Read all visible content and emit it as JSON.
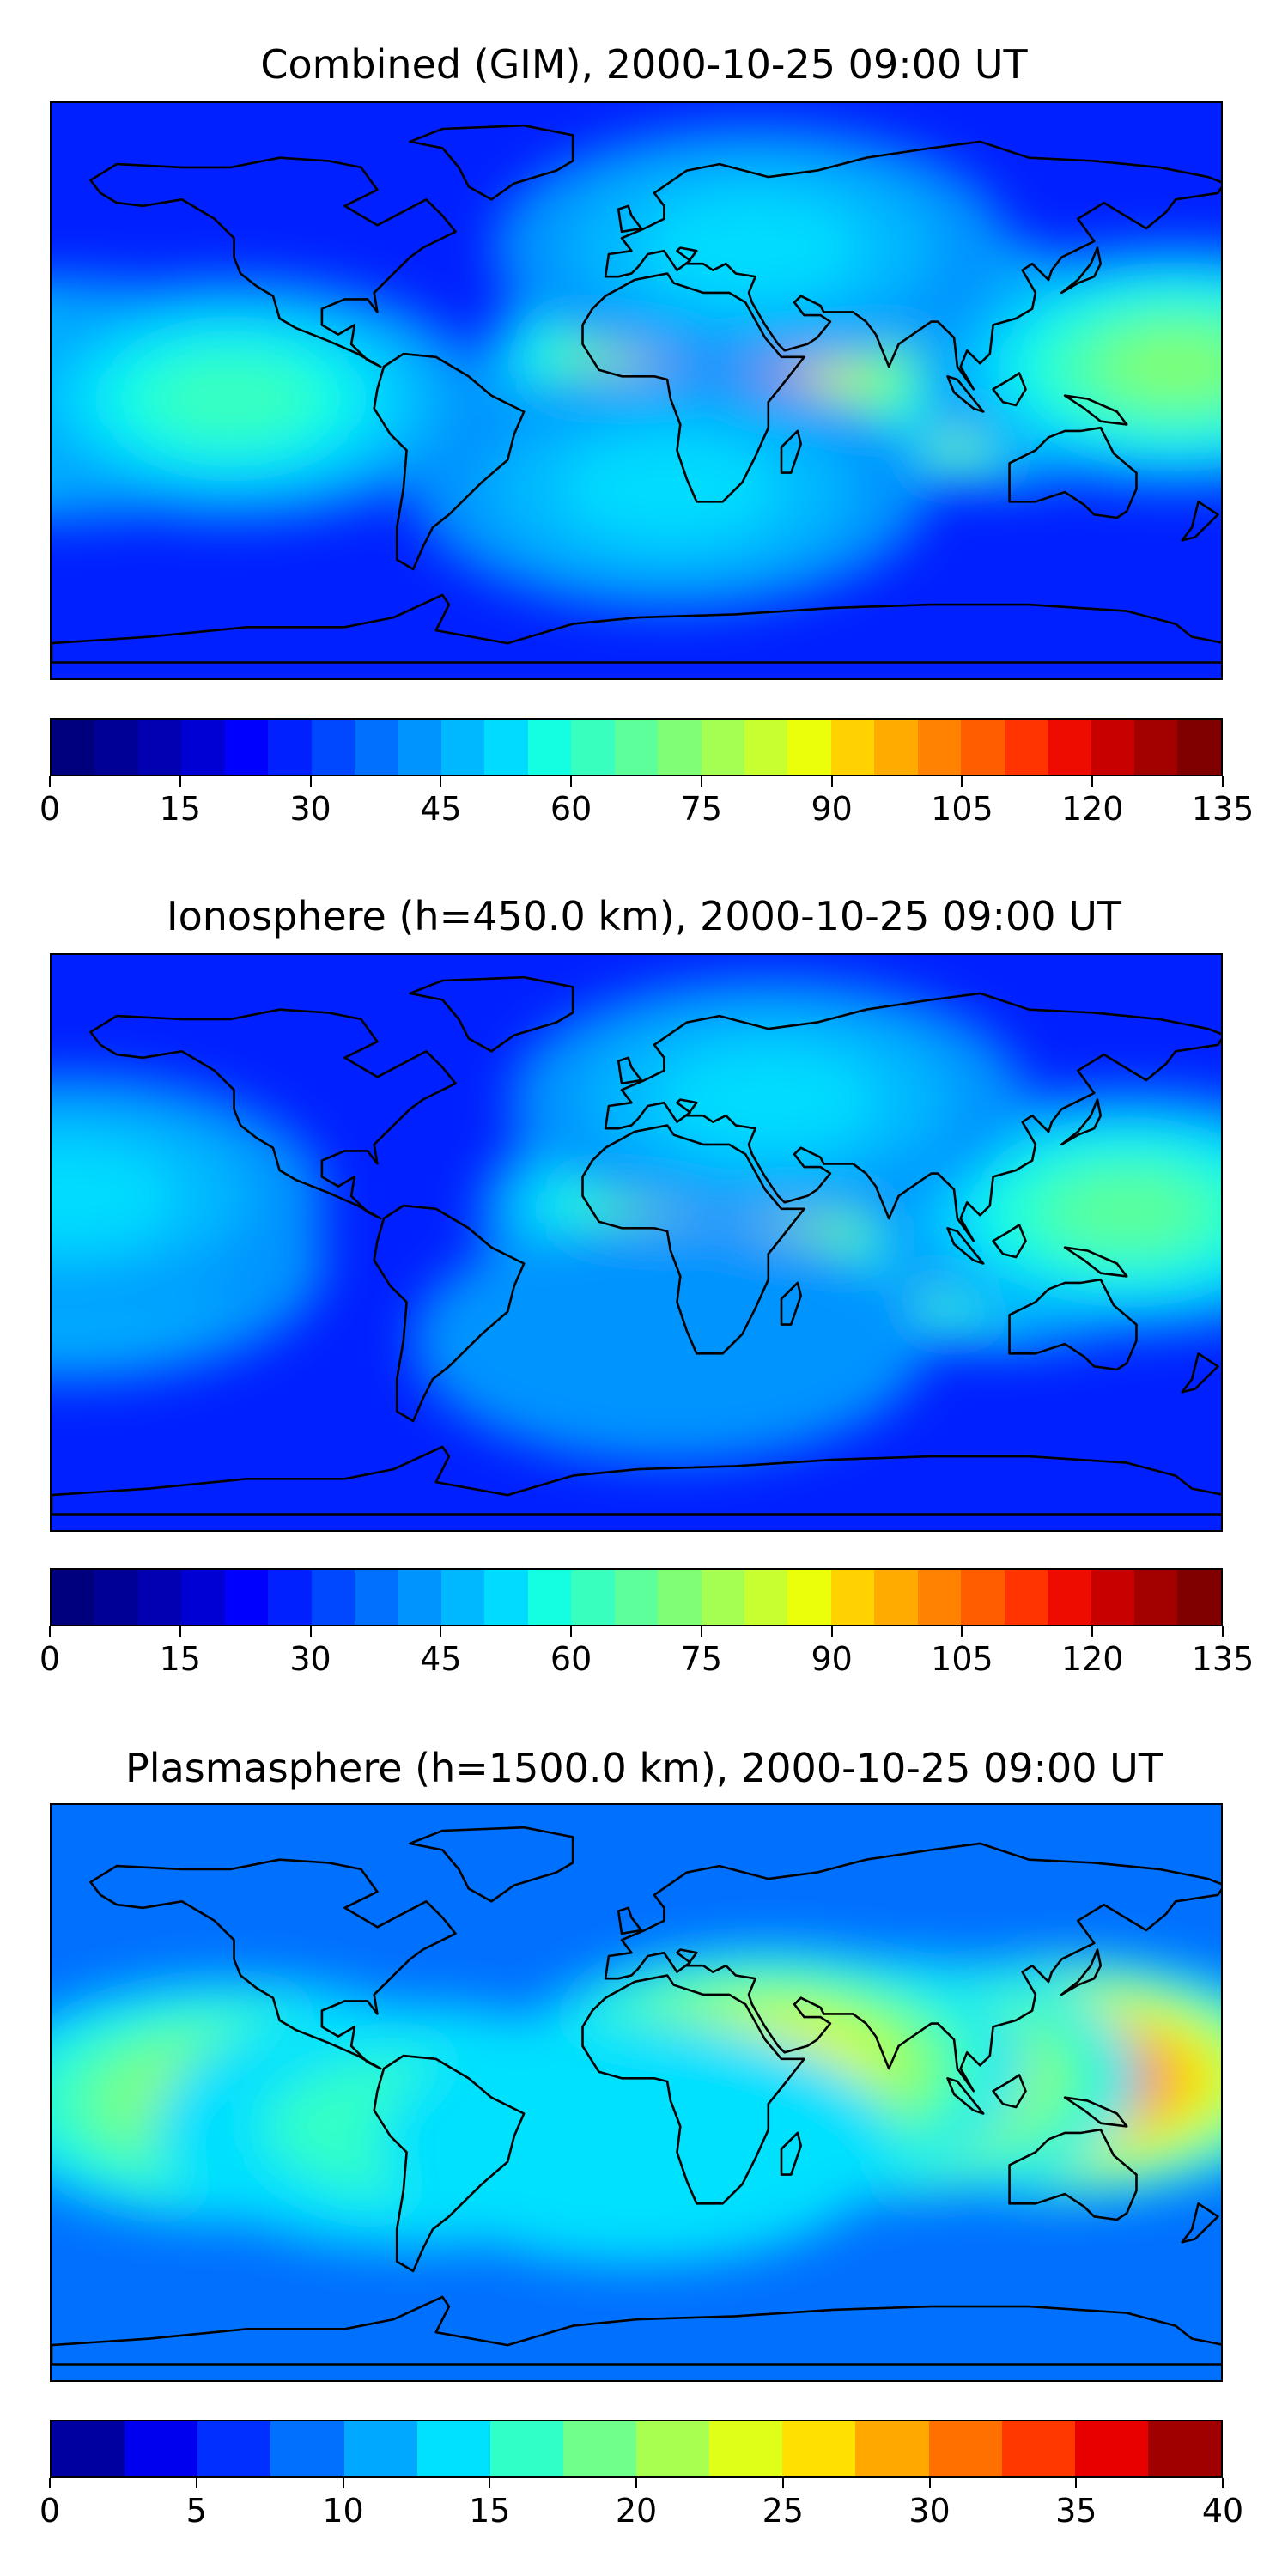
{
  "panels": [
    {
      "title": "Combined (GIM), 2000-10-25 09:00 UT",
      "colorbar": {
        "colors": [
          "#00007f",
          "#000096",
          "#0000b2",
          "#0000d5",
          "#0000ff",
          "#0020ff",
          "#0048ff",
          "#0070ff",
          "#0094ff",
          "#00b8ff",
          "#00dcff",
          "#14ffe2",
          "#38ffbe",
          "#5cff9a",
          "#80ff76",
          "#a4ff52",
          "#c8ff2e",
          "#ecff0a",
          "#ffd200",
          "#ffab00",
          "#ff8200",
          "#ff5d00",
          "#ff3400",
          "#ee0c00",
          "#c80000",
          "#a30000",
          "#800000"
        ],
        "ticks": [
          "0",
          "15",
          "30",
          "45",
          "60",
          "75",
          "90",
          "105",
          "120",
          "135"
        ]
      },
      "hotspots": [
        {
          "lon": 72,
          "lat": 10,
          "level": 1.0
        },
        {
          "lon": 105,
          "lat": 8,
          "level": 0.9
        },
        {
          "lon": 30,
          "lat": 8,
          "level": 0.75
        },
        {
          "lon": 165,
          "lat": 8,
          "level": 0.55
        },
        {
          "lon": -175,
          "lat": -2,
          "level": 0.55
        },
        {
          "lon": -125,
          "lat": -2,
          "level": 0.45
        },
        {
          "lon": 35,
          "lat": 45,
          "level": 0.4
        },
        {
          "lon": 10,
          "lat": -30,
          "level": 0.38
        }
      ]
    },
    {
      "title": "Ionosphere  (h=450.0 km), 2000-10-25 09:00 UT",
      "colorbar": {
        "colors": [
          "#00007f",
          "#000096",
          "#0000b2",
          "#0000d5",
          "#0000ff",
          "#0020ff",
          "#0048ff",
          "#0070ff",
          "#0094ff",
          "#00b8ff",
          "#00dcff",
          "#14ffe2",
          "#38ffbe",
          "#5cff9a",
          "#80ff76",
          "#a4ff52",
          "#c8ff2e",
          "#ecff0a",
          "#ffd200",
          "#ffab00",
          "#ff8200",
          "#ff5d00",
          "#ff3400",
          "#ee0c00",
          "#c80000",
          "#a30000",
          "#800000"
        ],
        "ticks": [
          "0",
          "15",
          "30",
          "45",
          "60",
          "75",
          "90",
          "105",
          "120",
          "135"
        ]
      },
      "hotspots": [
        {
          "lon": 75,
          "lat": 10,
          "level": 0.8
        },
        {
          "lon": 110,
          "lat": 5,
          "level": 0.78
        },
        {
          "lon": 30,
          "lat": 10,
          "level": 0.6
        },
        {
          "lon": 150,
          "lat": 10,
          "level": 0.5
        },
        {
          "lon": -175,
          "lat": -5,
          "level": 0.4
        },
        {
          "lon": -175,
          "lat": 15,
          "level": 0.4
        },
        {
          "lon": 40,
          "lat": 45,
          "level": 0.38
        },
        {
          "lon": 10,
          "lat": -30,
          "level": 0.32
        }
      ]
    },
    {
      "title": "Plasmasphere (h=1500.0 km), 2000-10-25 09:00 UT",
      "colorbar": {
        "colors": [
          "#0000a0",
          "#0000ef",
          "#0030ff",
          "#0070ff",
          "#00a8ff",
          "#00e0ff",
          "#30ffc8",
          "#70ff8a",
          "#a8ff50",
          "#e0ff18",
          "#ffe000",
          "#ffa800",
          "#ff7000",
          "#ff3800",
          "#e80000",
          "#a00000"
        ],
        "ticks": [
          "0",
          "5",
          "10",
          "15",
          "20",
          "25",
          "30",
          "35",
          "40"
        ]
      },
      "hotspots": [
        {
          "lon": 130,
          "lat": 5,
          "level": 0.9
        },
        {
          "lon": 75,
          "lat": 5,
          "level": 0.75
        },
        {
          "lon": 40,
          "lat": 8,
          "level": 0.65
        },
        {
          "lon": -125,
          "lat": -2,
          "level": 0.55
        },
        {
          "lon": -70,
          "lat": -10,
          "level": 0.4
        },
        {
          "lon": 0,
          "lat": -15,
          "level": 0.35
        }
      ]
    }
  ]
}
